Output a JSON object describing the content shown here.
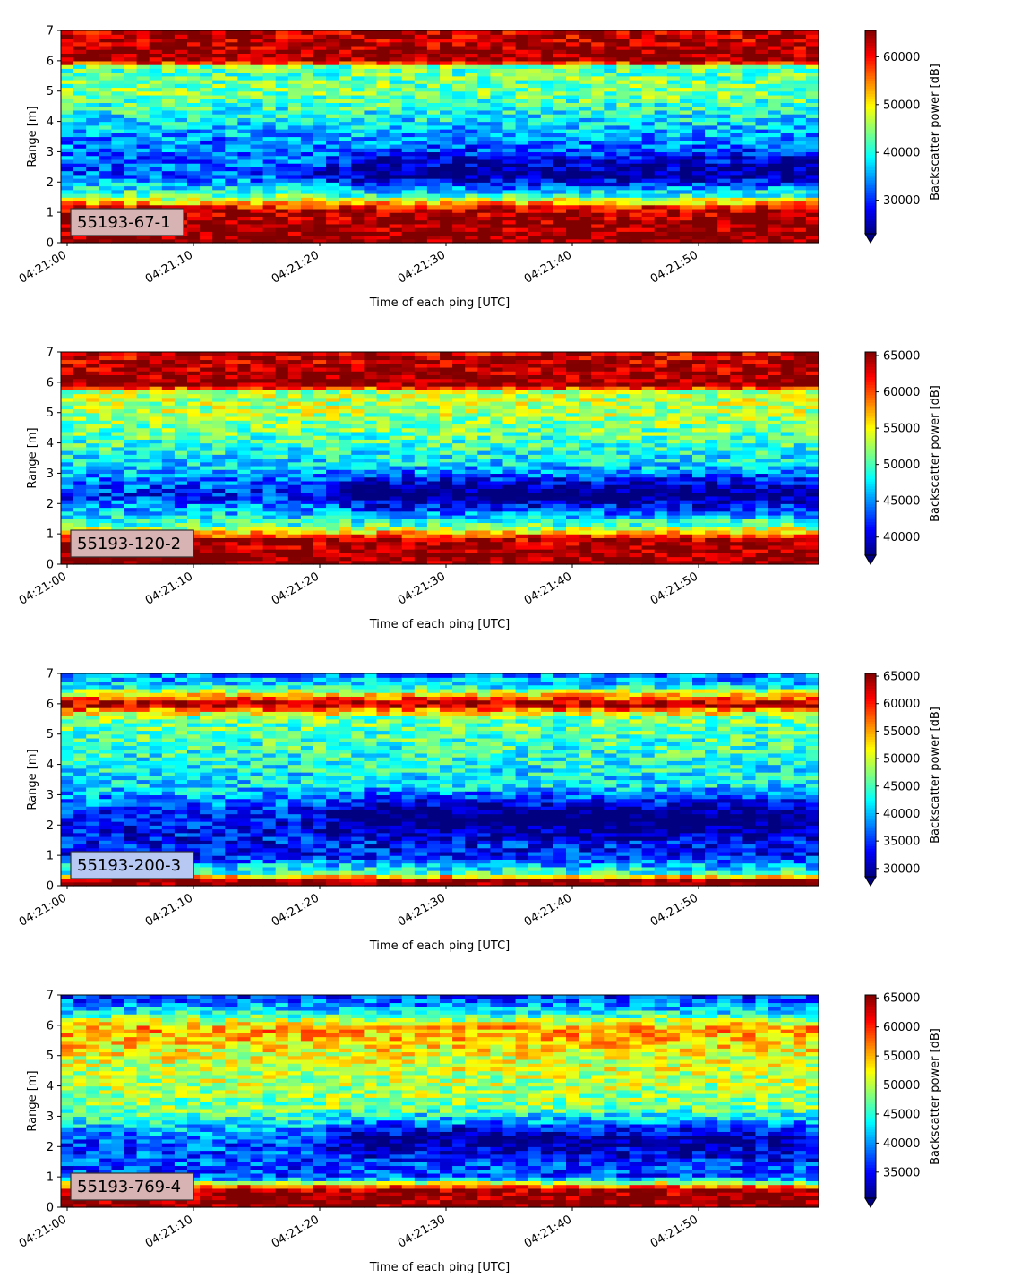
{
  "figure": {
    "panels": [
      {
        "tag": "55193-67-1",
        "tag_bg": "#d8b3b3",
        "cbar_ticks": [
          30000,
          40000,
          50000,
          60000
        ],
        "vmin": 23000,
        "vmax": 65500
      },
      {
        "tag": "55193-120-2",
        "tag_bg": "#d8b3b3",
        "cbar_ticks": [
          40000,
          45000,
          50000,
          55000,
          60000,
          65000
        ],
        "vmin": 37500,
        "vmax": 65500
      },
      {
        "tag": "55193-200-3",
        "tag_bg": "#b7c8f2",
        "cbar_ticks": [
          30000,
          35000,
          40000,
          45000,
          50000,
          55000,
          60000,
          65000
        ],
        "vmin": 28500,
        "vmax": 65500
      },
      {
        "tag": "55193-769-4",
        "tag_bg": "#d8b3b3",
        "cbar_ticks": [
          35000,
          40000,
          45000,
          50000,
          55000,
          60000,
          65000
        ],
        "vmin": 30500,
        "vmax": 65500
      }
    ]
  },
  "chart_data": [
    {
      "type": "heatmap",
      "xlabel": "Time of each ping [UTC]",
      "ylabel": "Range [m]",
      "colorbar_label": "Backscatter power [dB]",
      "x_ticks": [
        "04:21:00",
        "04:21:10",
        "04:21:20",
        "04:21:30",
        "04:21:40",
        "04:21:50"
      ],
      "y_ticks": [
        0,
        1,
        2,
        3,
        4,
        5,
        6,
        7
      ],
      "ylim": [
        0,
        7
      ],
      "colormap": "jet",
      "annotation": "55193-67-1",
      "range_profile": [
        {
          "range_m": 0.2,
          "level": 1.0
        },
        {
          "range_m": 1.1,
          "level": 0.95
        },
        {
          "range_m": 1.5,
          "level": 0.5
        },
        {
          "range_m": 2.2,
          "level": 0.2
        },
        {
          "range_m": 3.3,
          "level": 0.25
        },
        {
          "range_m": 5.0,
          "level": 0.5
        },
        {
          "range_m": 5.8,
          "level": 0.45
        },
        {
          "range_m": 6.0,
          "level": 1.0
        },
        {
          "range_m": 7.0,
          "level": 0.92
        }
      ]
    },
    {
      "type": "heatmap",
      "xlabel": "Time of each ping [UTC]",
      "ylabel": "Range [m]",
      "colorbar_label": "Backscatter power [dB]",
      "x_ticks": [
        "04:21:00",
        "04:21:10",
        "04:21:20",
        "04:21:30",
        "04:21:40",
        "04:21:50"
      ],
      "y_ticks": [
        0,
        1,
        2,
        3,
        4,
        5,
        6,
        7
      ],
      "ylim": [
        0,
        7
      ],
      "colormap": "jet",
      "annotation": "55193-120-2",
      "range_profile": [
        {
          "range_m": 0.2,
          "level": 1.0
        },
        {
          "range_m": 0.8,
          "level": 0.95
        },
        {
          "range_m": 1.3,
          "level": 0.45
        },
        {
          "range_m": 2.3,
          "level": 0.15
        },
        {
          "range_m": 3.3,
          "level": 0.35
        },
        {
          "range_m": 5.0,
          "level": 0.55
        },
        {
          "range_m": 5.7,
          "level": 0.55
        },
        {
          "range_m": 5.9,
          "level": 1.0
        },
        {
          "range_m": 7.0,
          "level": 0.92
        }
      ]
    },
    {
      "type": "heatmap",
      "xlabel": "Time of each ping [UTC]",
      "ylabel": "Range [m]",
      "colorbar_label": "Backscatter power [dB]",
      "x_ticks": [
        "04:21:00",
        "04:21:10",
        "04:21:20",
        "04:21:30",
        "04:21:40",
        "04:21:50"
      ],
      "y_ticks": [
        0,
        1,
        2,
        3,
        4,
        5,
        6,
        7
      ],
      "ylim": [
        0,
        7
      ],
      "colormap": "jet",
      "annotation": "55193-200-3",
      "range_profile": [
        {
          "range_m": 0.2,
          "level": 1.0
        },
        {
          "range_m": 0.4,
          "level": 0.45
        },
        {
          "range_m": 1.0,
          "level": 0.15
        },
        {
          "range_m": 2.2,
          "level": 0.12
        },
        {
          "range_m": 3.3,
          "level": 0.35
        },
        {
          "range_m": 5.0,
          "level": 0.45
        },
        {
          "range_m": 5.6,
          "level": 0.5
        },
        {
          "range_m": 6.0,
          "level": 1.0
        },
        {
          "range_m": 6.6,
          "level": 0.35
        },
        {
          "range_m": 7.0,
          "level": 0.25
        }
      ]
    },
    {
      "type": "heatmap",
      "xlabel": "Time of each ping [UTC]",
      "ylabel": "Range [m]",
      "colorbar_label": "Backscatter power [dB]",
      "x_ticks": [
        "04:21:00",
        "04:21:10",
        "04:21:20",
        "04:21:30",
        "04:21:40",
        "04:21:50"
      ],
      "y_ticks": [
        0,
        1,
        2,
        3,
        4,
        5,
        6,
        7
      ],
      "ylim": [
        0,
        7
      ],
      "colormap": "jet",
      "annotation": "55193-769-4",
      "range_profile": [
        {
          "range_m": 0.2,
          "level": 1.0
        },
        {
          "range_m": 0.6,
          "level": 0.95
        },
        {
          "range_m": 1.0,
          "level": 0.2
        },
        {
          "range_m": 2.2,
          "level": 0.2
        },
        {
          "range_m": 3.3,
          "level": 0.5
        },
        {
          "range_m": 5.0,
          "level": 0.6
        },
        {
          "range_m": 5.9,
          "level": 0.72
        },
        {
          "range_m": 6.5,
          "level": 0.35
        },
        {
          "range_m": 7.0,
          "level": 0.15
        }
      ]
    }
  ]
}
